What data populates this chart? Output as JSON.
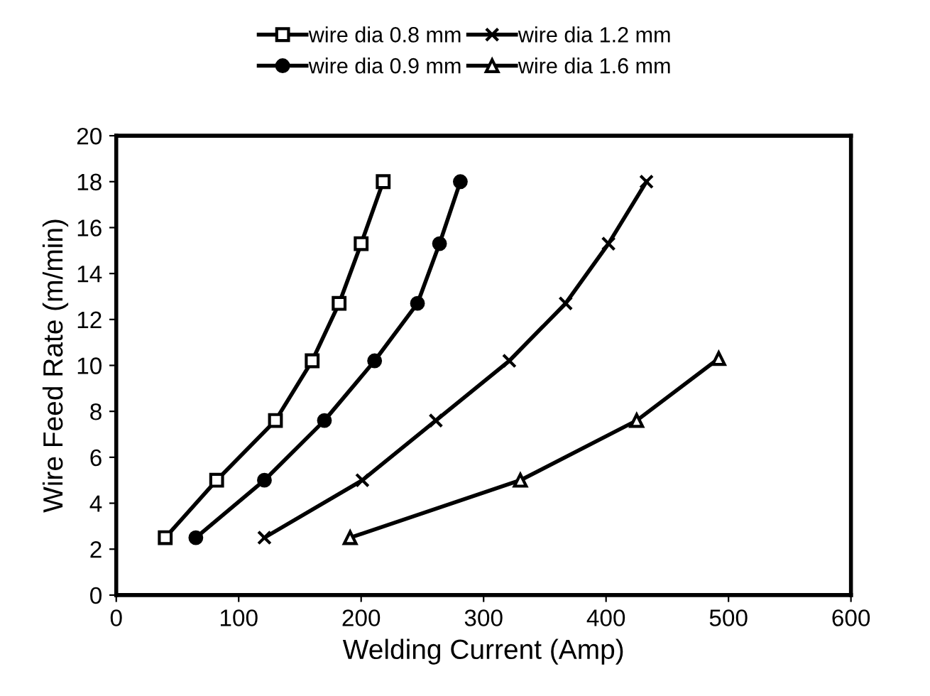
{
  "chart_data": {
    "type": "line",
    "xlabel": "Welding Current (Amp)",
    "ylabel": "Wire Feed Rate (m/min)",
    "xlim": [
      0,
      600
    ],
    "xticks": [
      0,
      100,
      200,
      300,
      400,
      500,
      600
    ],
    "ylim": [
      0,
      20
    ],
    "yticks": [
      0,
      2,
      4,
      6,
      8,
      10,
      12,
      14,
      16,
      18,
      20
    ],
    "grid": false,
    "legend": "top",
    "series": [
      {
        "name": "wire dia 0.8 mm",
        "color": "#000000",
        "marker": "square",
        "x": [
          40,
          82,
          130,
          160,
          182,
          200,
          218
        ],
        "values": [
          2.5,
          5,
          7.6,
          10.2,
          12.7,
          15.3,
          18
        ]
      },
      {
        "name": "wire dia 0.9 mm",
        "color": "#000000",
        "marker": "circle",
        "x": [
          65,
          121,
          170,
          211,
          246,
          264,
          281
        ],
        "values": [
          2.5,
          5,
          7.6,
          10.2,
          12.7,
          15.3,
          18
        ]
      },
      {
        "name": "wire dia 1.2 mm",
        "color": "#000000",
        "marker": "cross",
        "x": [
          121,
          201,
          261,
          321,
          367,
          402,
          433
        ],
        "values": [
          2.5,
          5,
          7.6,
          10.2,
          12.7,
          15.3,
          18
        ]
      },
      {
        "name": "wire dia 1.6 mm",
        "color": "#000000",
        "marker": "triangle",
        "x": [
          191,
          330,
          425,
          492
        ],
        "values": [
          2.5,
          5,
          7.6,
          10.3
        ]
      }
    ]
  }
}
